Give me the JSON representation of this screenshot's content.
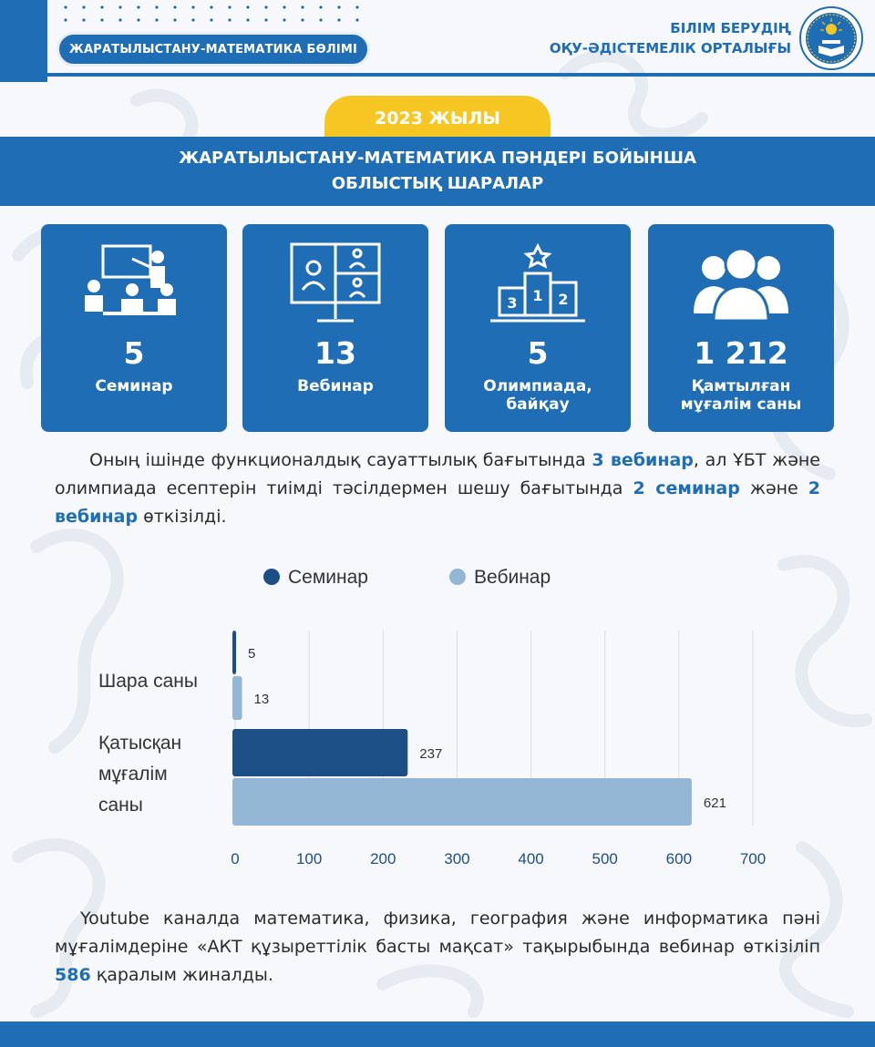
{
  "header": {
    "department": "ЖАРАТЫЛЫСТАНУ-МАТЕМАТИКА БӨЛІМІ",
    "org_line1": "БІЛІМ БЕРУДІҢ",
    "org_line2": "ОҚУ-ӘДІСТЕМЕЛІК ОРТАЛЫҒЫ"
  },
  "year": "2023 ЖЫЛЫ",
  "banner": {
    "line1": "ЖАРАТЫЛЫСТАНУ-МАТЕМАТИКА ПӘНДЕРІ БОЙЫНША",
    "line2": "ОБЛЫСТЫҚ ШАРАЛАР"
  },
  "cards": [
    {
      "icon": "seminar-icon",
      "value": "5",
      "label_line1": "Семинар",
      "label_line2": ""
    },
    {
      "icon": "webinar-icon",
      "value": "13",
      "label_line1": "Вебинар",
      "label_line2": ""
    },
    {
      "icon": "podium-icon",
      "value": "5",
      "label_line1": "Олимпиада,",
      "label_line2": "байқау",
      "podium_places": [
        "3",
        "1",
        "2"
      ]
    },
    {
      "icon": "people-icon",
      "value": "1 212",
      "label_line1": "Қамтылған",
      "label_line2": "мұғалім саны"
    }
  ],
  "paragraph1": {
    "t1": "Оның ішінде функционалдық сауаттылық бағытында ",
    "b1": "3 вебинар",
    "t2": ", ал ҰБТ және олимпиада есептерін тиімді тәсілдермен шешу бағытында ",
    "b2": "2 семинар",
    "t3": " және ",
    "b3": "2 вебинар",
    "t4": " өткізілді."
  },
  "chart_data": {
    "type": "bar",
    "orientation": "horizontal",
    "categories": [
      "Шара саны",
      "Қатысқан мұғалім саны"
    ],
    "category_lines": [
      [
        "Шара саны"
      ],
      [
        "Қатысқан",
        "мұғалім",
        "саны"
      ]
    ],
    "series": [
      {
        "name": "Семинар",
        "values": [
          5,
          237
        ],
        "color": "#1b4f86"
      },
      {
        "name": "Вебинар",
        "values": [
          13,
          621
        ],
        "color": "#93b6d4"
      }
    ],
    "xlim": [
      0,
      700
    ],
    "xticks": [
      0,
      100,
      200,
      300,
      400,
      500,
      600,
      700
    ],
    "grid": true,
    "legend": "top"
  },
  "paragraph2": {
    "t1": "Youtube каналда математика, физика, география және информатика пәні мұғалімдеріне «АКТ құзыреттілік басты мақсат» тақырыбында вебинар өткізіліп ",
    "b1": "586",
    "t2": " қаралым жиналды."
  },
  "colors": {
    "primary": "#1e6db5",
    "accent": "#f6c623",
    "dark_series": "#1b4f86",
    "light_series": "#93b6d4"
  }
}
